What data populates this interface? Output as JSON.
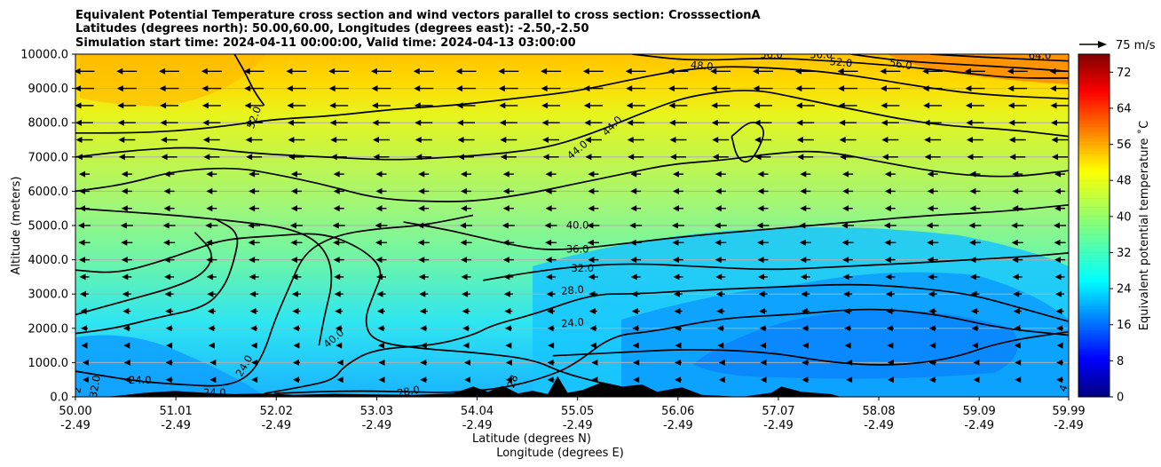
{
  "chart_data": {
    "type": "contour",
    "title_lines": [
      "Equivalent Potential Temperature cross section and wind vectors parallel to cross section: CrosssectionA",
      "Latitudes (degrees north): 50.00,60.00, Longitudes (degrees east): -2.50,-2.50",
      "Simulation start time: 2024-04-11 00:00:00, Valid time: 2024-04-13 03:00:00"
    ],
    "xlabel_lines": [
      "Latitude (degrees N)",
      "Longitude (degrees E)"
    ],
    "ylabel": "Altitude (meters)",
    "colorbar_label": "Equivalent potential temperature ˚C",
    "quiver_key_label": "75 m/s",
    "xlim": [
      50.0,
      59.99
    ],
    "ylim": [
      0,
      10000
    ],
    "x_ticks": [
      {
        "lat": "50.00",
        "lon": "-2.49",
        "value": 50.0
      },
      {
        "lat": "51.01",
        "lon": "-2.49",
        "value": 51.01
      },
      {
        "lat": "52.02",
        "lon": "-2.49",
        "value": 52.02
      },
      {
        "lat": "53.03",
        "lon": "-2.49",
        "value": 53.03
      },
      {
        "lat": "54.04",
        "lon": "-2.49",
        "value": 54.04
      },
      {
        "lat": "55.05",
        "lon": "-2.49",
        "value": 55.05
      },
      {
        "lat": "56.06",
        "lon": "-2.49",
        "value": 56.06
      },
      {
        "lat": "57.07",
        "lon": "-2.49",
        "value": 57.07
      },
      {
        "lat": "58.08",
        "lon": "-2.49",
        "value": 58.08
      },
      {
        "lat": "59.09",
        "lon": "-2.49",
        "value": 59.09
      },
      {
        "lat": "59.99",
        "lon": "-2.49",
        "value": 59.99
      }
    ],
    "y_ticks": [
      "0.0",
      "1000.0",
      "2000.0",
      "3000.0",
      "4000.0",
      "5000.0",
      "6000.0",
      "7000.0",
      "8000.0",
      "9000.0",
      "10000.0"
    ],
    "colorbar": {
      "min": 0,
      "max": 76,
      "ticks": [
        "0",
        "8",
        "16",
        "24",
        "32",
        "40",
        "48",
        "56",
        "64",
        "72"
      ],
      "colormap": "jet"
    },
    "grid": true,
    "contour_labels": [
      {
        "text": "52.0",
        "lat": 51.8,
        "alt": 8150,
        "rot": -70
      },
      {
        "text": "48.0",
        "lat": 56.3,
        "alt": 9650,
        "rot": 5
      },
      {
        "text": "52.0",
        "lat": 57.7,
        "alt": 9750,
        "rot": 5
      },
      {
        "text": "56.0",
        "lat": 58.3,
        "alt": 9700,
        "rot": 10
      },
      {
        "text": "56.0",
        "lat": 57.0,
        "alt": 9980,
        "rot": 0
      },
      {
        "text": "56.0",
        "lat": 57.5,
        "alt": 9980,
        "rot": 0
      },
      {
        "text": "64.0",
        "lat": 59.7,
        "alt": 9950,
        "rot": 0
      },
      {
        "text": "44.0",
        "lat": 55.05,
        "alt": 7200,
        "rot": -40
      },
      {
        "text": "44.0",
        "lat": 55.4,
        "alt": 7900,
        "rot": -45
      },
      {
        "text": "40.0",
        "lat": 55.05,
        "alt": 5000,
        "rot": 0
      },
      {
        "text": "36.0",
        "lat": 55.05,
        "alt": 4300,
        "rot": 0
      },
      {
        "text": "32.0",
        "lat": 55.1,
        "alt": 3750,
        "rot": 0
      },
      {
        "text": "28.0",
        "lat": 55.0,
        "alt": 3100,
        "rot": -5
      },
      {
        "text": "24.0",
        "lat": 55.0,
        "alt": 2150,
        "rot": -5
      },
      {
        "text": "40.0",
        "lat": 52.6,
        "alt": 1700,
        "rot": -40
      },
      {
        "text": "24.0",
        "lat": 51.7,
        "alt": 900,
        "rot": -60
      },
      {
        "text": "24.0",
        "lat": 50.65,
        "alt": 480,
        "rot": 0
      },
      {
        "text": "24.0",
        "lat": 51.4,
        "alt": 120,
        "rot": 0
      },
      {
        "text": "28.0",
        "lat": 53.35,
        "alt": 150,
        "rot": -10
      },
      {
        "text": "28",
        "lat": 54.4,
        "alt": 450,
        "rot": -70
      },
      {
        "text": "32.0",
        "lat": 50.2,
        "alt": 300,
        "rot": -80
      },
      {
        "text": "2",
        "lat": 50.02,
        "alt": 200,
        "rot": -80
      },
      {
        "text": "4",
        "lat": 59.94,
        "alt": 250,
        "rot": -70
      }
    ],
    "contours": [
      {
        "level": 20,
        "label": "",
        "points": [
          [
            50.0,
            1850
          ],
          [
            50.4,
            2000
          ],
          [
            50.8,
            2300
          ],
          [
            51.3,
            2600
          ],
          [
            51.5,
            3200
          ],
          [
            51.6,
            4000
          ],
          [
            51.65,
            4800
          ],
          [
            51.4,
            5200
          ]
        ]
      },
      {
        "level": 24,
        "label": "24.0",
        "points": [
          [
            50.0,
            750
          ],
          [
            50.3,
            600
          ],
          [
            50.7,
            430
          ],
          [
            51.1,
            350
          ],
          [
            51.5,
            300
          ],
          [
            51.75,
            600
          ],
          [
            51.9,
            1300
          ],
          [
            52.0,
            2200
          ],
          [
            52.15,
            3200
          ],
          [
            52.3,
            4200
          ],
          [
            52.6,
            4700
          ],
          [
            53.0,
            4900
          ],
          [
            53.5,
            5000
          ],
          [
            54.0,
            5300
          ]
        ]
      },
      {
        "level": 24,
        "label": "24.0",
        "points": [
          [
            54.8,
            1200
          ],
          [
            55.5,
            1300
          ],
          [
            56.2,
            1400
          ],
          [
            57.0,
            1300
          ],
          [
            57.6,
            1000
          ],
          [
            58.2,
            900
          ],
          [
            58.8,
            1100
          ],
          [
            59.3,
            1600
          ],
          [
            59.99,
            1900
          ]
        ]
      },
      {
        "level": 28,
        "label": "28.0",
        "points": [
          [
            52.0,
            100
          ],
          [
            52.7,
            180
          ],
          [
            53.35,
            150
          ],
          [
            53.8,
            120
          ],
          [
            54.3,
            250
          ],
          [
            54.7,
            550
          ],
          [
            55.0,
            900
          ],
          [
            55.4,
            1800
          ],
          [
            55.8,
            1900
          ],
          [
            56.5,
            2300
          ],
          [
            57.2,
            2400
          ],
          [
            58.0,
            2600
          ],
          [
            58.7,
            2400
          ],
          [
            59.3,
            2000
          ],
          [
            59.99,
            1800
          ]
        ]
      },
      {
        "level": 32,
        "label": "32.0",
        "points": [
          [
            50.0,
            2400
          ],
          [
            50.5,
            2800
          ],
          [
            51.0,
            3200
          ],
          [
            51.3,
            3600
          ],
          [
            51.4,
            4200
          ],
          [
            51.2,
            4800
          ]
        ]
      },
      {
        "level": 32,
        "label": "32.0",
        "points": [
          [
            51.9,
            100
          ],
          [
            52.3,
            300
          ],
          [
            52.6,
            500
          ],
          [
            52.7,
            900
          ],
          [
            53.0,
            1400
          ],
          [
            53.6,
            1500
          ],
          [
            54.0,
            1800
          ],
          [
            54.2,
            2100
          ],
          [
            54.6,
            2400
          ],
          [
            55.2,
            3000
          ],
          [
            55.6,
            3000
          ],
          [
            56.2,
            3100
          ],
          [
            57.0,
            3200
          ],
          [
            57.8,
            3300
          ],
          [
            58.4,
            3200
          ],
          [
            59.0,
            3000
          ],
          [
            59.5,
            2600
          ],
          [
            59.99,
            2200
          ]
        ]
      },
      {
        "level": 36,
        "label": "36.0",
        "points": [
          [
            50.0,
            3700
          ],
          [
            50.4,
            3600
          ],
          [
            50.8,
            3900
          ],
          [
            51.2,
            4300
          ],
          [
            51.5,
            4600
          ],
          [
            52.0,
            4700
          ],
          [
            52.5,
            4800
          ],
          [
            52.9,
            4300
          ],
          [
            53.1,
            3700
          ],
          [
            53.0,
            3000
          ],
          [
            52.9,
            2200
          ],
          [
            53.0,
            1600
          ],
          [
            53.5,
            1400
          ],
          [
            54.0,
            1300
          ],
          [
            54.6,
            1100
          ],
          [
            54.9,
            700
          ],
          [
            55.3,
            400
          ]
        ]
      },
      {
        "level": 36,
        "label": "36.0",
        "points": [
          [
            54.1,
            3400
          ],
          [
            54.5,
            3600
          ],
          [
            55.0,
            3800
          ],
          [
            55.6,
            3900
          ],
          [
            56.3,
            3800
          ],
          [
            57.0,
            3700
          ],
          [
            57.7,
            3800
          ],
          [
            58.4,
            3900
          ],
          [
            59.0,
            4000
          ],
          [
            59.6,
            4100
          ],
          [
            59.99,
            4200
          ]
        ]
      },
      {
        "level": 40,
        "label": "40.0",
        "points": [
          [
            53.3,
            5100
          ],
          [
            53.7,
            4900
          ],
          [
            54.0,
            4700
          ],
          [
            54.6,
            4300
          ],
          [
            55.0,
            4300
          ],
          [
            55.6,
            4500
          ],
          [
            56.2,
            4700
          ],
          [
            57.0,
            4900
          ],
          [
            57.8,
            5100
          ],
          [
            58.6,
            5300
          ],
          [
            59.3,
            5400
          ],
          [
            59.99,
            5600
          ]
        ]
      },
      {
        "level": 40,
        "label": "40.0",
        "points": [
          [
            52.45,
            1500
          ],
          [
            52.5,
            2300
          ],
          [
            52.6,
            3500
          ],
          [
            52.5,
            4400
          ],
          [
            52.2,
            4900
          ],
          [
            51.7,
            5100
          ],
          [
            51.0,
            5300
          ],
          [
            50.5,
            5400
          ],
          [
            50.0,
            5500
          ]
        ]
      },
      {
        "level": 44,
        "label": "44.0",
        "points": [
          [
            50.0,
            6000
          ],
          [
            50.5,
            6200
          ],
          [
            51.0,
            6600
          ],
          [
            51.6,
            6700
          ],
          [
            52.0,
            6500
          ],
          [
            52.5,
            6200
          ],
          [
            53.0,
            5800
          ],
          [
            53.5,
            5700
          ],
          [
            54.0,
            5700
          ],
          [
            54.5,
            5900
          ],
          [
            55.0,
            6200
          ],
          [
            55.5,
            6500
          ],
          [
            56.0,
            6800
          ],
          [
            56.5,
            6900
          ],
          [
            57.0,
            7100
          ],
          [
            57.5,
            7200
          ],
          [
            58.2,
            6800
          ],
          [
            58.8,
            6500
          ],
          [
            59.4,
            6400
          ],
          [
            59.99,
            6600
          ]
        ]
      },
      {
        "level": 44,
        "label": "44.0",
        "points": [
          [
            50.0,
            7000
          ],
          [
            50.6,
            7200
          ],
          [
            51.2,
            7300
          ],
          [
            51.8,
            7100
          ],
          [
            52.5,
            7000
          ],
          [
            53.2,
            6900
          ],
          [
            53.8,
            7000
          ],
          [
            54.3,
            7100
          ],
          [
            54.8,
            7300
          ],
          [
            55.3,
            7800
          ],
          [
            55.8,
            8400
          ],
          [
            56.2,
            8800
          ],
          [
            56.8,
            9000
          ],
          [
            57.3,
            8700
          ],
          [
            57.8,
            8400
          ],
          [
            58.3,
            8100
          ],
          [
            58.8,
            7900
          ],
          [
            59.4,
            7800
          ],
          [
            59.99,
            7600
          ]
        ]
      },
      {
        "level": 48,
        "label": "48.0",
        "points": [
          [
            50.0,
            7700
          ],
          [
            50.5,
            7700
          ],
          [
            51.0,
            7750
          ],
          [
            51.5,
            7900
          ],
          [
            52.0,
            8100
          ],
          [
            52.6,
            8200
          ],
          [
            53.2,
            8400
          ],
          [
            53.8,
            8500
          ],
          [
            54.4,
            8700
          ],
          [
            55.0,
            8900
          ],
          [
            55.5,
            9200
          ],
          [
            56.0,
            9500
          ],
          [
            56.5,
            9650
          ],
          [
            57.0,
            9600
          ],
          [
            57.5,
            9500
          ],
          [
            58.0,
            9300
          ],
          [
            58.6,
            9000
          ],
          [
            59.2,
            8800
          ],
          [
            59.99,
            8700
          ]
        ]
      },
      {
        "level": 48,
        "label": "",
        "points": [
          [
            56.6,
            7600
          ],
          [
            56.65,
            7000
          ],
          [
            56.75,
            6800
          ],
          [
            56.85,
            7100
          ],
          [
            56.95,
            7800
          ],
          [
            56.8,
            8100
          ],
          [
            56.6,
            7600
          ]
        ]
      },
      {
        "level": 52,
        "label": "52.0",
        "points": [
          [
            51.9,
            8500
          ],
          [
            51.8,
            8900
          ],
          [
            51.7,
            9500
          ],
          [
            51.6,
            10000
          ]
        ]
      },
      {
        "level": 52,
        "label": "52.0",
        "points": [
          [
            55.6,
            10000
          ],
          [
            56.2,
            9800
          ],
          [
            57.0,
            9900
          ],
          [
            57.6,
            9800
          ],
          [
            58.1,
            9700
          ],
          [
            58.8,
            9500
          ],
          [
            59.4,
            9300
          ],
          [
            59.99,
            9300
          ]
        ]
      },
      {
        "level": 56,
        "label": "56.0",
        "points": [
          [
            57.8,
            10000
          ],
          [
            58.3,
            9800
          ],
          [
            58.9,
            9700
          ],
          [
            59.5,
            9600
          ],
          [
            59.99,
            9500
          ]
        ]
      },
      {
        "level": 60,
        "label": "",
        "points": [
          [
            58.6,
            10000
          ],
          [
            59.2,
            9900
          ],
          [
            59.99,
            9800
          ]
        ]
      }
    ],
    "wind_vectors_note": "Wind vectors parallel to cross section, mostly directed toward lower latitude (leftward)"
  }
}
